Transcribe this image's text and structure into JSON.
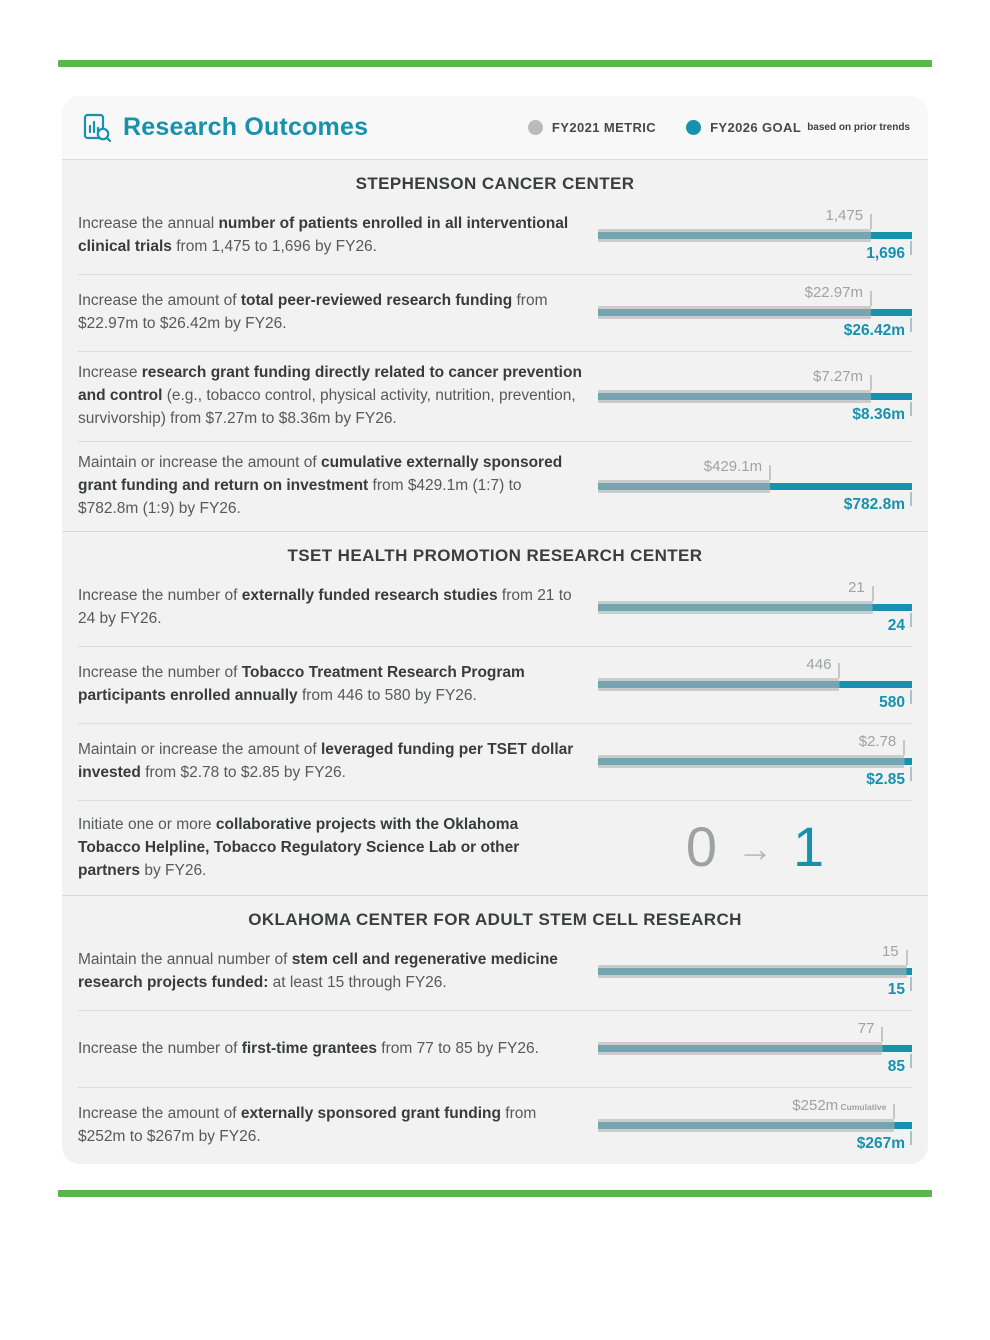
{
  "header": {
    "title": "Research Outcomes",
    "icon": "bar-chart-magnifier-icon",
    "legend": {
      "fy2021_label": "FY2021 METRIC",
      "fy2026_label": "FY2026 GOAL",
      "note": "based on prior trends",
      "fy2021_color": "#b9bbba",
      "fy2026_color": "#1791ae"
    }
  },
  "colors": {
    "accent_teal": "#1791ae",
    "muted_teal_overlap": "#74a5b0",
    "bar_gray": "#cacccb",
    "label_gray": "#a0a2a3",
    "green_rule": "#5cb64e",
    "card_background": "#f1f2f1"
  },
  "sections": [
    {
      "title": "STEPHENSON CANCER CENTER",
      "metrics": [
        {
          "text": [
            {
              "t": "Increase the annual "
            },
            {
              "t": "number of patients enrolled in all interventional clinical trials",
              "b": true
            },
            {
              "t": " from 1,475 to 1,696 by FY26."
            }
          ],
          "chart": {
            "type": "bar",
            "fy2021_value": 1475,
            "fy2026_value": 1696,
            "fy2021_label": "1,475",
            "fy2026_label": "1,696"
          }
        },
        {
          "text": [
            {
              "t": "Increase the amount of "
            },
            {
              "t": "total peer-reviewed research funding",
              "b": true
            },
            {
              "t": " from $22.97m to $26.42m by FY26."
            }
          ],
          "chart": {
            "type": "bar",
            "fy2021_value": 22.97,
            "fy2026_value": 26.42,
            "fy2021_label": "$22.97m",
            "fy2026_label": "$26.42m"
          }
        },
        {
          "text": [
            {
              "t": "Increase "
            },
            {
              "t": "research grant funding directly related to cancer prevention and control",
              "b": true
            },
            {
              "t": " (e.g., tobacco control, physical activity, nutrition, prevention, survivorship) from $7.27m to $8.36m by FY26."
            }
          ],
          "chart": {
            "type": "bar",
            "fy2021_value": 7.27,
            "fy2026_value": 8.36,
            "fy2021_label": "$7.27m",
            "fy2026_label": "$8.36m"
          }
        },
        {
          "text": [
            {
              "t": "Maintain or increase the amount of "
            },
            {
              "t": "cumulative externally sponsored grant funding and return on investment",
              "b": true
            },
            {
              "t": " from $429.1m (1:7) to $782.8m (1:9) by FY26."
            }
          ],
          "chart": {
            "type": "bar",
            "fy2021_value": 429.1,
            "fy2026_value": 782.8,
            "fy2021_label": "$429.1m",
            "fy2026_label": "$782.8m"
          }
        }
      ]
    },
    {
      "title": "TSET HEALTH PROMOTION RESEARCH CENTER",
      "metrics": [
        {
          "text": [
            {
              "t": "Increase the number of "
            },
            {
              "t": "externally funded research studies",
              "b": true
            },
            {
              "t": " from 21 to 24 by FY26."
            }
          ],
          "chart": {
            "type": "bar",
            "fy2021_value": 21,
            "fy2026_value": 24,
            "fy2021_label": "21",
            "fy2026_label": "24"
          }
        },
        {
          "text": [
            {
              "t": "Increase the number of "
            },
            {
              "t": "Tobacco Treatment Research Program participants enrolled annually",
              "b": true
            },
            {
              "t": " from 446 to 580 by FY26."
            }
          ],
          "chart": {
            "type": "bar",
            "fy2021_value": 446,
            "fy2026_value": 580,
            "fy2021_label": "446",
            "fy2026_label": "580"
          }
        },
        {
          "text": [
            {
              "t": "Maintain or increase the amount of "
            },
            {
              "t": "leveraged funding per TSET dollar invested",
              "b": true
            },
            {
              "t": " from $2.78 to $2.85 by FY26."
            }
          ],
          "chart": {
            "type": "bar",
            "fy2021_value": 2.78,
            "fy2026_value": 2.85,
            "fy2021_label": "$2.78",
            "fy2026_label": "$2.85"
          }
        },
        {
          "text": [
            {
              "t": "Initiate one or more "
            },
            {
              "t": "collaborative projects with the Oklahoma Tobacco Helpline, Tobacco Regulatory Science Lab or other partners",
              "b": true
            },
            {
              "t": " by FY26."
            }
          ],
          "chart": {
            "type": "transition",
            "from_label": "0",
            "arrow": "→",
            "to_label": "1"
          }
        }
      ]
    },
    {
      "title": "OKLAHOMA CENTER FOR ADULT STEM CELL RESEARCH",
      "metrics": [
        {
          "text": [
            {
              "t": "Maintain the annual number of "
            },
            {
              "t": "stem cell and regenerative medicine research projects funded:",
              "b": true
            },
            {
              "t": " at least 15 through FY26."
            }
          ],
          "chart": {
            "type": "bar",
            "fy2021_value": 15,
            "fy2026_value": 15,
            "fy2021_label": "15",
            "fy2026_label": "15"
          }
        },
        {
          "text": [
            {
              "t": "Increase the number of "
            },
            {
              "t": "first-time grantees",
              "b": true
            },
            {
              "t": " from 77 to 85 by FY26."
            }
          ],
          "chart": {
            "type": "bar",
            "fy2021_value": 77,
            "fy2026_value": 85,
            "fy2021_label": "77",
            "fy2026_label": "85"
          }
        },
        {
          "text": [
            {
              "t": "Increase the amount of "
            },
            {
              "t": "externally sponsored grant funding",
              "b": true
            },
            {
              "t": " from $252m to $267m by FY26."
            }
          ],
          "chart": {
            "type": "bar",
            "fy2021_value": 252,
            "fy2026_value": 267,
            "fy2021_label": "$252m",
            "fy2021_note": "Cumulative",
            "fy2026_label": "$267m"
          }
        }
      ]
    }
  ]
}
